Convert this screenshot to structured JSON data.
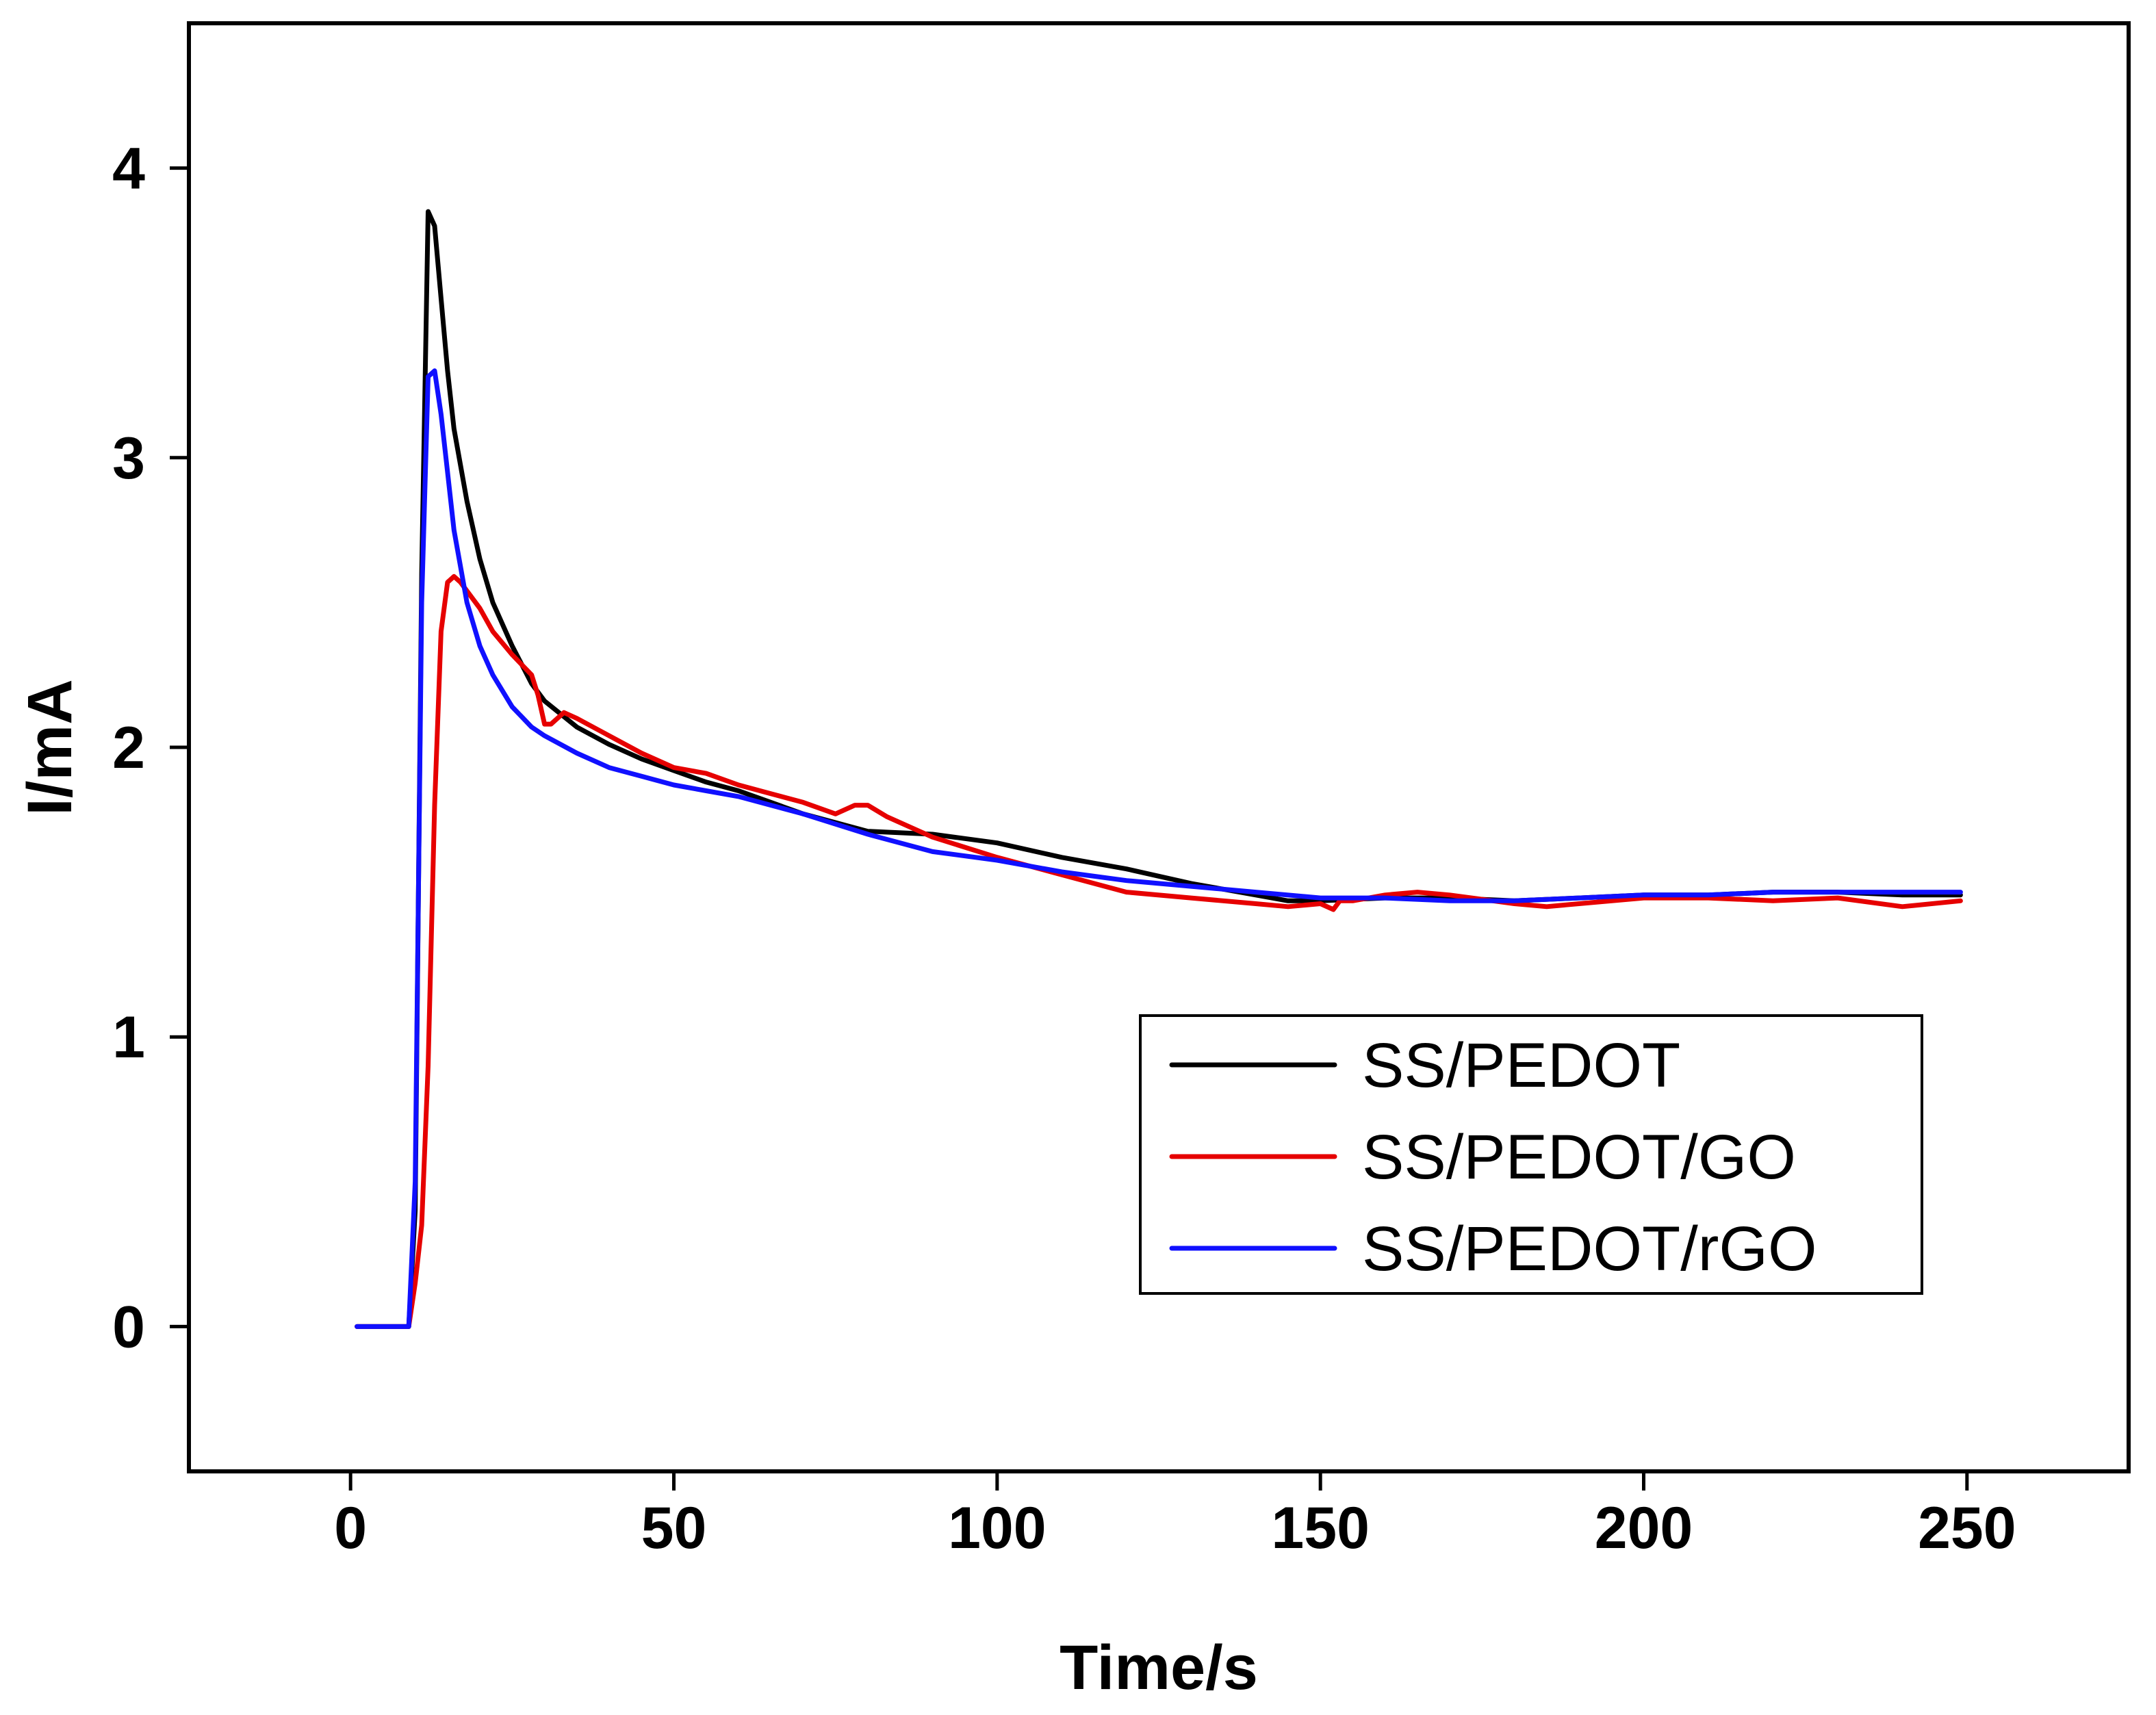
{
  "chart_data": {
    "type": "line",
    "title": "",
    "xlabel": "Time/s",
    "ylabel": "I/mA",
    "xlim": [
      -25,
      275
    ],
    "ylim": [
      -0.5,
      4.5
    ],
    "xticks": [
      0,
      50,
      100,
      150,
      200,
      250
    ],
    "yticks": [
      0,
      1,
      2,
      3,
      4
    ],
    "grid": false,
    "legend_position": "bottom-right",
    "series": [
      {
        "name": "SS/PEDOT",
        "color": "#000000",
        "x": [
          1,
          9,
          10,
          11,
          12,
          13,
          14,
          15,
          16,
          18,
          20,
          22,
          25,
          28,
          30,
          35,
          40,
          45,
          50,
          55,
          60,
          70,
          80,
          90,
          100,
          110,
          120,
          130,
          140,
          145,
          150,
          160,
          170,
          180,
          190,
          200,
          210,
          220,
          230,
          240,
          249
        ],
        "y": [
          0,
          0,
          0.4,
          2.6,
          3.85,
          3.8,
          3.55,
          3.3,
          3.1,
          2.85,
          2.65,
          2.5,
          2.35,
          2.22,
          2.16,
          2.07,
          2.01,
          1.96,
          1.92,
          1.88,
          1.85,
          1.77,
          1.71,
          1.7,
          1.67,
          1.62,
          1.58,
          1.53,
          1.49,
          1.47,
          1.47,
          1.48,
          1.48,
          1.47,
          1.48,
          1.49,
          1.49,
          1.5,
          1.5,
          1.49,
          1.49
        ]
      },
      {
        "name": "SS/PEDOT/GO",
        "color": "#e60000",
        "x": [
          1,
          9,
          10,
          11,
          12,
          13,
          14,
          15,
          16,
          17,
          18,
          20,
          22,
          25,
          28,
          29,
          30,
          31,
          33,
          35,
          40,
          45,
          50,
          55,
          60,
          65,
          70,
          75,
          78,
          80,
          83,
          90,
          100,
          110,
          120,
          130,
          140,
          145,
          150,
          152,
          153,
          155,
          160,
          165,
          170,
          180,
          185,
          190,
          200,
          210,
          220,
          230,
          240,
          249
        ],
        "y": [
          0,
          0,
          0.15,
          0.35,
          0.9,
          1.8,
          2.4,
          2.57,
          2.59,
          2.57,
          2.54,
          2.48,
          2.4,
          2.32,
          2.25,
          2.18,
          2.08,
          2.08,
          2.12,
          2.1,
          2.04,
          1.98,
          1.93,
          1.91,
          1.87,
          1.84,
          1.81,
          1.77,
          1.8,
          1.8,
          1.76,
          1.69,
          1.62,
          1.56,
          1.5,
          1.48,
          1.46,
          1.45,
          1.46,
          1.44,
          1.47,
          1.47,
          1.49,
          1.5,
          1.49,
          1.46,
          1.45,
          1.46,
          1.48,
          1.48,
          1.47,
          1.48,
          1.45,
          1.47
        ]
      },
      {
        "name": "SS/PEDOT/rGO",
        "color": "#1010ff",
        "x": [
          1,
          9,
          10,
          11,
          12,
          13,
          14,
          15,
          16,
          18,
          20,
          22,
          25,
          28,
          30,
          35,
          40,
          45,
          50,
          55,
          60,
          70,
          80,
          90,
          100,
          110,
          120,
          130,
          140,
          150,
          160,
          170,
          180,
          190,
          200,
          210,
          220,
          230,
          240,
          249
        ],
        "y": [
          0,
          0,
          0.5,
          2.5,
          3.28,
          3.3,
          3.15,
          2.95,
          2.75,
          2.5,
          2.35,
          2.25,
          2.14,
          2.07,
          2.04,
          1.98,
          1.93,
          1.9,
          1.87,
          1.85,
          1.83,
          1.77,
          1.7,
          1.64,
          1.61,
          1.57,
          1.54,
          1.52,
          1.5,
          1.48,
          1.48,
          1.47,
          1.47,
          1.48,
          1.49,
          1.49,
          1.5,
          1.5,
          1.5,
          1.5
        ]
      }
    ]
  }
}
